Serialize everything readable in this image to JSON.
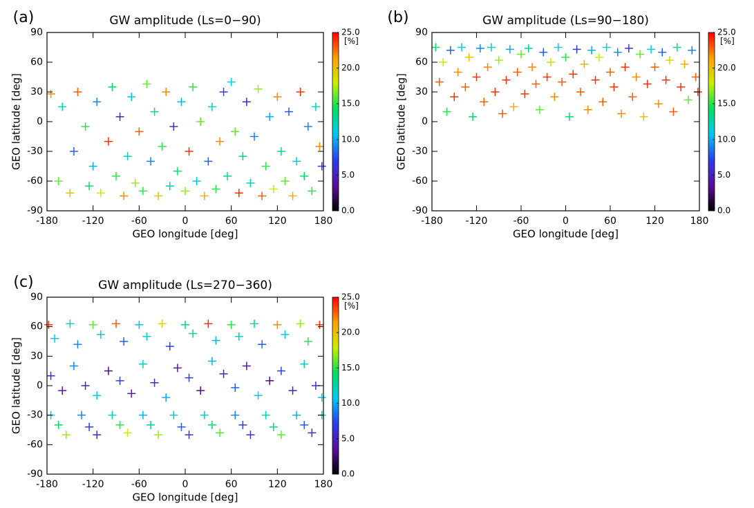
{
  "chart_data": [
    {
      "type": "scatter",
      "panel_label": "(a)",
      "title": "GW amplitude (Ls=0−90)",
      "xlabel": "GEO longitude [deg]",
      "ylabel": "GEO latitude [deg]",
      "xlim": [
        -180,
        180
      ],
      "ylim": [
        -90,
        90
      ],
      "xticks": [
        -180,
        -120,
        -60,
        0,
        60,
        120,
        180
      ],
      "yticks": [
        -90,
        -60,
        -30,
        0,
        30,
        60,
        90
      ],
      "marker": "+",
      "colormap": [
        "#000000",
        "#5b0f9a",
        "#2a3df0",
        "#00c8f0",
        "#00e060",
        "#c8f000",
        "#ffa000",
        "#ff0000"
      ],
      "clim": [
        0,
        25
      ],
      "cticks": [
        {
          "value": 0,
          "label": "0.0"
        },
        {
          "value": 5,
          "label": "5.0"
        },
        {
          "value": 10,
          "label": "10.0"
        },
        {
          "value": 15,
          "label": "15.0"
        },
        {
          "value": 20,
          "label": "20.0"
        },
        {
          "value": 25,
          "label": "25.0"
        }
      ],
      "cunit": "[%]",
      "x": [
        -175,
        -165,
        -160,
        -150,
        -145,
        -140,
        -130,
        -125,
        -120,
        -115,
        -110,
        -100,
        -95,
        -90,
        -85,
        -80,
        -75,
        -70,
        -65,
        -60,
        -55,
        -50,
        -45,
        -40,
        -35,
        -30,
        -25,
        -20,
        -15,
        -10,
        -5,
        0,
        5,
        10,
        15,
        20,
        25,
        30,
        35,
        40,
        45,
        50,
        55,
        60,
        65,
        70,
        75,
        80,
        85,
        90,
        95,
        100,
        105,
        110,
        115,
        120,
        125,
        130,
        135,
        140,
        145,
        150,
        155,
        160,
        165,
        170,
        175,
        178
      ],
      "y": [
        28,
        -60,
        15,
        -72,
        -30,
        30,
        -5,
        -65,
        -45,
        20,
        -72,
        -20,
        35,
        -55,
        5,
        -75,
        -35,
        25,
        -62,
        -10,
        -70,
        38,
        -40,
        10,
        -75,
        -25,
        30,
        -65,
        -5,
        -50,
        20,
        -70,
        -30,
        35,
        -60,
        0,
        -75,
        -40,
        15,
        -68,
        -20,
        30,
        -55,
        40,
        -10,
        -72,
        -35,
        20,
        -62,
        -15,
        33,
        -75,
        -45,
        5,
        -68,
        25,
        -30,
        -60,
        10,
        -75,
        -40,
        30,
        -55,
        -5,
        -70,
        15,
        -25,
        -45
      ],
      "values": [
        22,
        16,
        12,
        20,
        8,
        23,
        15,
        14,
        10,
        9,
        18,
        24,
        14,
        15,
        5,
        22,
        12,
        11,
        17,
        23,
        15,
        16,
        9,
        13,
        20,
        15,
        22,
        12,
        6,
        14,
        10,
        17,
        24,
        15,
        11,
        16,
        21,
        8,
        12,
        15,
        22,
        7,
        13,
        11,
        16,
        24,
        14,
        5,
        12,
        9,
        17,
        23,
        15,
        10,
        18,
        22,
        13,
        16,
        8,
        21,
        11,
        24,
        14,
        9,
        15,
        12,
        22,
        7
      ]
    },
    {
      "type": "scatter",
      "panel_label": "(b)",
      "title": "GW amplitude (Ls=90−180)",
      "xlabel": "GEO longitude [deg]",
      "ylabel": "GEO latitude [deg]",
      "xlim": [
        -180,
        180
      ],
      "ylim": [
        -90,
        90
      ],
      "xticks": [
        -180,
        -120,
        -60,
        0,
        60,
        120,
        180
      ],
      "yticks": [
        -90,
        -60,
        -30,
        0,
        30,
        60,
        90
      ],
      "marker": "+",
      "colormap": [
        "#000000",
        "#5b0f9a",
        "#2a3df0",
        "#00c8f0",
        "#00e060",
        "#c8f000",
        "#ffa000",
        "#ff0000"
      ],
      "clim": [
        0,
        25
      ],
      "cticks": [
        {
          "value": 0,
          "label": "0.0"
        },
        {
          "value": 5,
          "label": "5.0"
        },
        {
          "value": 10,
          "label": "10.0"
        },
        {
          "value": 15,
          "label": "15.0"
        },
        {
          "value": 20,
          "label": "20.0"
        },
        {
          "value": 25,
          "label": "25.0"
        }
      ],
      "cunit": "[%]",
      "x": [
        -175,
        -170,
        -165,
        -160,
        -155,
        -150,
        -145,
        -140,
        -135,
        -130,
        -125,
        -120,
        -115,
        -110,
        -105,
        -100,
        -95,
        -90,
        -85,
        -80,
        -75,
        -70,
        -65,
        -60,
        -55,
        -50,
        -45,
        -40,
        -35,
        -30,
        -25,
        -20,
        -15,
        -10,
        -5,
        0,
        5,
        10,
        15,
        20,
        25,
        30,
        35,
        40,
        45,
        50,
        55,
        60,
        65,
        70,
        75,
        80,
        85,
        90,
        95,
        100,
        105,
        110,
        115,
        120,
        125,
        130,
        135,
        140,
        145,
        150,
        155,
        160,
        165,
        170,
        175,
        178
      ],
      "y": [
        75,
        40,
        60,
        10,
        72,
        25,
        50,
        75,
        35,
        65,
        5,
        45,
        74,
        20,
        55,
        75,
        30,
        62,
        8,
        42,
        73,
        15,
        50,
        68,
        28,
        74,
        55,
        38,
        12,
        70,
        45,
        60,
        25,
        75,
        40,
        65,
        5,
        48,
        73,
        30,
        58,
        12,
        72,
        42,
        65,
        20,
        75,
        50,
        35,
        70,
        8,
        55,
        74,
        25,
        45,
        68,
        5,
        38,
        73,
        55,
        18,
        70,
        42,
        62,
        10,
        75,
        35,
        58,
        22,
        72,
        45,
        30
      ],
      "values": [
        14,
        23,
        18,
        15,
        8,
        24,
        22,
        11,
        23,
        20,
        14,
        24,
        9,
        23,
        22,
        12,
        24,
        17,
        23,
        24,
        10,
        21,
        23,
        16,
        24,
        13,
        22,
        23,
        16,
        8,
        24,
        19,
        22,
        11,
        23,
        15,
        14,
        24,
        7,
        23,
        21,
        22,
        10,
        24,
        18,
        23,
        12,
        23,
        24,
        9,
        22,
        24,
        6,
        23,
        22,
        16,
        20,
        24,
        11,
        23,
        22,
        8,
        24,
        19,
        23,
        13,
        24,
        21,
        16,
        9,
        23,
        24
      ]
    },
    {
      "type": "scatter",
      "panel_label": "(c)",
      "title": "GW amplitude (Ls=270−360)",
      "xlabel": "GEO longitude [deg]",
      "ylabel": "GEO latitude [deg]",
      "xlim": [
        -180,
        180
      ],
      "ylim": [
        -90,
        90
      ],
      "xticks": [
        -180,
        -120,
        -60,
        0,
        60,
        120,
        180
      ],
      "yticks": [
        -90,
        -60,
        -30,
        0,
        30,
        60,
        90
      ],
      "marker": "+",
      "colormap": [
        "#000000",
        "#5b0f9a",
        "#2a3df0",
        "#00c8f0",
        "#00e060",
        "#c8f000",
        "#ffa000",
        "#ff0000"
      ],
      "clim": [
        0,
        25
      ],
      "cticks": [
        {
          "value": 0,
          "label": "0.0"
        },
        {
          "value": 5,
          "label": "5.0"
        },
        {
          "value": 10,
          "label": "10.0"
        },
        {
          "value": 15,
          "label": "15.0"
        },
        {
          "value": 20,
          "label": "20.0"
        },
        {
          "value": 25,
          "label": "25.0"
        }
      ],
      "cunit": "[%]",
      "x": [
        -178,
        -150,
        -120,
        -90,
        -60,
        -30,
        0,
        30,
        60,
        90,
        120,
        150,
        175,
        -170,
        -140,
        -110,
        -80,
        -50,
        -20,
        10,
        40,
        70,
        100,
        130,
        160,
        -175,
        -160,
        -145,
        -130,
        -115,
        -100,
        -85,
        -70,
        -55,
        -40,
        -25,
        -10,
        5,
        20,
        35,
        50,
        65,
        80,
        95,
        110,
        125,
        140,
        155,
        170,
        178,
        -175,
        -165,
        -155,
        -135,
        -125,
        -115,
        -95,
        -85,
        -75,
        -55,
        -45,
        -35,
        -15,
        -5,
        5,
        25,
        35,
        45,
        65,
        75,
        85,
        105,
        115,
        125,
        145,
        155,
        165,
        178
      ],
      "y": [
        62,
        63,
        62,
        63,
        62,
        63,
        62,
        63,
        62,
        63,
        62,
        63,
        62,
        48,
        42,
        52,
        45,
        50,
        40,
        53,
        46,
        50,
        42,
        52,
        45,
        10,
        -5,
        20,
        0,
        -10,
        15,
        5,
        -8,
        22,
        3,
        -12,
        18,
        8,
        -5,
        25,
        12,
        -2,
        20,
        -10,
        5,
        15,
        -5,
        22,
        0,
        -12,
        -30,
        -40,
        -50,
        -30,
        -42,
        -50,
        -30,
        -40,
        -48,
        -30,
        -40,
        -50,
        -30,
        -42,
        -50,
        -30,
        -40,
        -48,
        -30,
        -40,
        -50,
        -30,
        -42,
        -50,
        -30,
        -40,
        -48,
        -30
      ],
      "values": [
        24,
        12,
        16,
        23,
        11,
        19,
        14,
        24,
        15,
        13,
        22,
        17,
        24,
        11,
        9,
        12,
        8,
        11,
        7,
        13,
        10,
        12,
        8,
        11,
        15,
        6,
        4,
        9,
        5,
        11,
        3,
        7,
        4,
        12,
        6,
        10,
        4,
        7,
        3,
        10,
        5,
        8,
        4,
        11,
        3,
        7,
        5,
        12,
        6,
        11,
        11,
        14,
        17,
        9,
        7,
        6,
        12,
        15,
        18,
        10,
        13,
        17,
        11,
        8,
        6,
        12,
        14,
        16,
        9,
        7,
        6,
        12,
        14,
        16,
        10,
        8,
        6,
        12
      ]
    }
  ]
}
